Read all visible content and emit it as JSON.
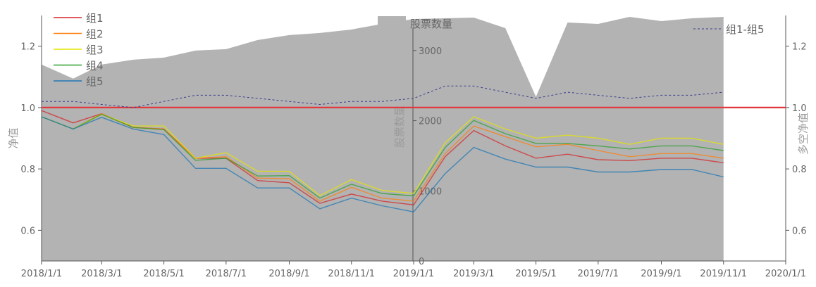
{
  "chart_data": {
    "type": "line",
    "x": [
      "2018/1/1",
      "2018/2/1",
      "2018/3/1",
      "2018/4/1",
      "2018/5/1",
      "2018/6/1",
      "2018/7/1",
      "2018/8/1",
      "2018/9/1",
      "2018/10/1",
      "2018/11/1",
      "2018/12/1",
      "2019/1/1",
      "2019/2/1",
      "2019/3/1",
      "2019/4/1",
      "2019/5/1",
      "2019/6/1",
      "2019/7/1",
      "2019/8/1",
      "2019/9/1",
      "2019/10/1",
      "2019/11/1"
    ],
    "x_tick_labels": [
      "2018/1/1",
      "2018/3/1",
      "2018/5/1",
      "2018/7/1",
      "2018/9/1",
      "2018/11/1",
      "2019/1/1",
      "2019/3/1",
      "2019/5/1",
      "2019/7/1",
      "2019/9/1",
      "2019/11/1",
      "2020/1/1"
    ],
    "xlim": [
      "2018/1/1",
      "2020/1/1"
    ],
    "left_axis": {
      "label": "净值",
      "ylim": [
        0.5,
        1.3
      ],
      "ticks": [
        "0.6",
        "0.8",
        "1.0",
        "1.2"
      ]
    },
    "right_axis": {
      "label": "多空净值",
      "ylim": [
        0.5,
        1.3
      ],
      "ticks": [
        "0.6",
        "0.8",
        "1.0",
        "1.2"
      ]
    },
    "middle_axis": {
      "label": "股票数量",
      "ylim": [
        0,
        3500
      ],
      "ticks": [
        "0",
        "1000",
        "2000",
        "3000"
      ]
    },
    "reference_line": {
      "y": 1.0,
      "color": "#e0393e"
    },
    "area": {
      "name": "股票数量",
      "color": "#b3b3b3",
      "values": [
        2800,
        2600,
        2800,
        2870,
        2900,
        3000,
        3020,
        3150,
        3220,
        3250,
        3300,
        3380,
        3450,
        3460,
        3470,
        3320,
        2340,
        3400,
        3380,
        3480,
        3420,
        3460,
        3480
      ]
    },
    "series": [
      {
        "name": "组1",
        "color": "#d62728",
        "axis": "left",
        "style": "solid",
        "values": [
          0.99,
          0.95,
          0.98,
          0.935,
          0.93,
          0.835,
          0.835,
          0.762,
          0.755,
          0.688,
          0.718,
          0.695,
          0.683,
          0.84,
          0.925,
          0.875,
          0.835,
          0.848,
          0.83,
          0.827,
          0.835,
          0.835,
          0.82
        ]
      },
      {
        "name": "组2",
        "color": "#ff7f0e",
        "axis": "left",
        "style": "solid",
        "values": [
          0.97,
          0.93,
          0.98,
          0.935,
          0.93,
          0.835,
          0.84,
          0.77,
          0.768,
          0.695,
          0.74,
          0.705,
          0.695,
          0.85,
          0.94,
          0.905,
          0.872,
          0.88,
          0.86,
          0.84,
          0.85,
          0.85,
          0.835
        ]
      },
      {
        "name": "组3",
        "color": "#e5e500",
        "axis": "left",
        "style": "solid",
        "values": [
          0.97,
          0.93,
          0.978,
          0.94,
          0.94,
          0.835,
          0.853,
          0.792,
          0.792,
          0.713,
          0.765,
          0.73,
          0.72,
          0.885,
          0.97,
          0.93,
          0.9,
          0.91,
          0.9,
          0.88,
          0.9,
          0.9,
          0.88
        ]
      },
      {
        "name": "组4",
        "color": "#2ca02c",
        "axis": "left",
        "style": "solid",
        "values": [
          0.97,
          0.93,
          0.978,
          0.935,
          0.928,
          0.828,
          0.835,
          0.777,
          0.778,
          0.705,
          0.75,
          0.72,
          0.712,
          0.87,
          0.958,
          0.915,
          0.883,
          0.883,
          0.875,
          0.865,
          0.875,
          0.875,
          0.86
        ]
      },
      {
        "name": "组5",
        "color": "#1f77b4",
        "axis": "left",
        "style": "solid",
        "values": [
          0.97,
          0.93,
          0.968,
          0.93,
          0.912,
          0.802,
          0.802,
          0.738,
          0.738,
          0.67,
          0.705,
          0.68,
          0.66,
          0.785,
          0.87,
          0.832,
          0.806,
          0.806,
          0.79,
          0.79,
          0.798,
          0.798,
          0.774
        ]
      },
      {
        "name": "组1-组5",
        "color": "#3a3f8f",
        "axis": "right",
        "style": "dashed",
        "values": [
          1.02,
          1.02,
          1.01,
          1.0,
          1.02,
          1.04,
          1.04,
          1.03,
          1.02,
          1.01,
          1.02,
          1.02,
          1.03,
          1.07,
          1.07,
          1.05,
          1.03,
          1.05,
          1.04,
          1.03,
          1.04,
          1.04,
          1.05
        ]
      }
    ],
    "grid": false,
    "legend_placement": "top-left; area legend top-center; long-short legend top-right"
  }
}
